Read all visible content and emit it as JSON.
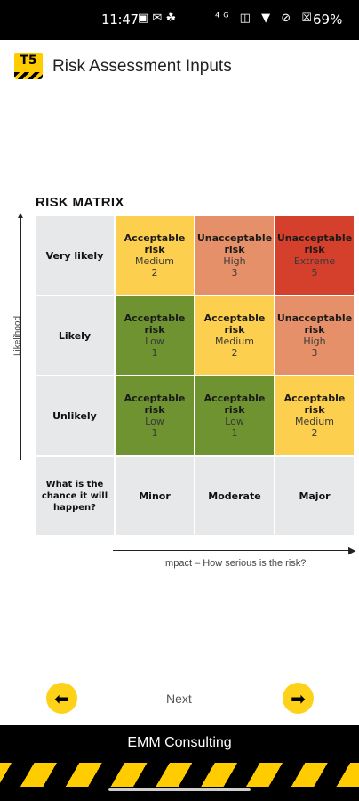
{
  "status_bar": {
    "time": "11:47",
    "left_icons": "▣ ✉ ☘",
    "right_icons": "⁴ᴳ ◫ ▼ ⊘ ☒",
    "battery": "69%"
  },
  "app_bar": {
    "logo_text": "T5",
    "title": "Risk Assessment Inputs"
  },
  "matrix": {
    "title": "RISK MATRIX",
    "rows": [
      {
        "label": "Very likely",
        "cells": [
          {
            "line1": "Acceptable risk",
            "line2": "Medium",
            "line3": "2"
          },
          {
            "line1": "Unacceptable risk",
            "line2": "High",
            "line3": "3"
          },
          {
            "line1": "Unacceptable risk",
            "line2": "Extreme",
            "line3": "5"
          }
        ]
      },
      {
        "label": "Likely",
        "cells": [
          {
            "line1": "Acceptable risk",
            "line2": "Low",
            "line3": "1"
          },
          {
            "line1": "Acceptable risk",
            "line2": "Medium",
            "line3": "2"
          },
          {
            "line1": "Unacceptable risk",
            "line2": "High",
            "line3": "3"
          }
        ]
      },
      {
        "label": "Unlikely",
        "cells": [
          {
            "line1": "Acceptable risk",
            "line2": "Low",
            "line3": "1"
          },
          {
            "line1": "Acceptable risk",
            "line2": "Low",
            "line3": "1"
          },
          {
            "line1": "Acceptable risk",
            "line2": "Medium",
            "line3": "2"
          }
        ]
      }
    ],
    "corner_label": "What is the chance it will happen?",
    "columns": [
      "Minor",
      "Moderate",
      "Major"
    ],
    "y_axis_label": "Likelihood",
    "x_axis_label": "Impact – How serious is the risk?",
    "colors": {
      "acceptable_medium": "#fdcf4f",
      "acceptable_low": "#6e9330",
      "unacceptable_high": "#e59068",
      "unacceptable_extreme": "#d4402c",
      "header": "#e6e8ea"
    }
  },
  "nav": {
    "prev_icon": "arrow-left-icon",
    "next_icon": "arrow-right-icon",
    "next_label": "Next"
  },
  "footer": {
    "company": "EMM Consulting"
  }
}
